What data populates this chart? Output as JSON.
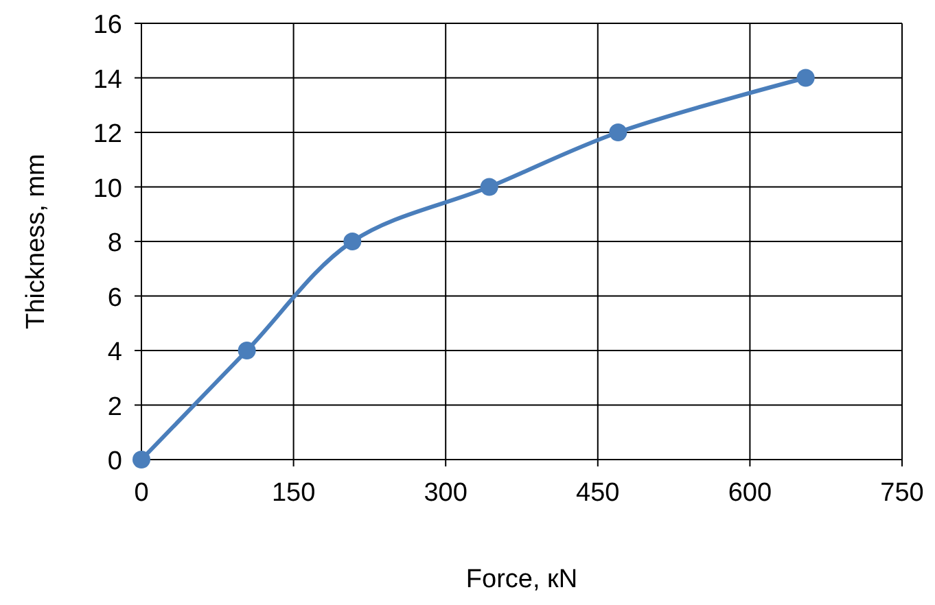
{
  "chart_data": {
    "type": "line",
    "xlabel": "Force, кN",
    "ylabel": "Thickness, mm",
    "x": [
      0,
      104,
      208,
      343,
      470,
      655
    ],
    "series": [
      {
        "color": "#4a7ebb",
        "values": [
          0,
          4,
          8,
          10,
          12,
          14
        ]
      }
    ],
    "xlim": [
      0,
      750
    ],
    "xticks": [
      0,
      150,
      300,
      450,
      600,
      750
    ],
    "ylim": [
      0,
      16
    ],
    "yticks": [
      0,
      2,
      4,
      6,
      8,
      10,
      12,
      14,
      16
    ],
    "grid": true,
    "marker": "circle",
    "line_style": "solid"
  }
}
